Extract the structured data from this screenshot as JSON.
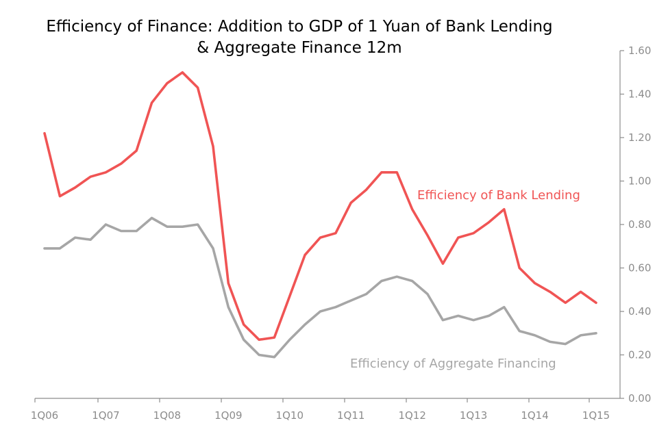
{
  "chart_data": {
    "type": "line",
    "title_line1": "Efficiency of Finance: Addition to GDP of 1 Yuan of Bank Lending",
    "title_line2": "& Aggregate Finance 12m",
    "x_tick_labels": [
      "1Q06",
      "1Q07",
      "1Q08",
      "1Q09",
      "1Q10",
      "1Q11",
      "1Q12",
      "1Q13",
      "1Q14",
      "1Q15"
    ],
    "y_tick_labels": [
      "0.00",
      "0.20",
      "0.40",
      "0.60",
      "0.80",
      "1.00",
      "1.20",
      "1.40",
      "1.60"
    ],
    "ylim": [
      0,
      1.6
    ],
    "x": [
      "1Q06",
      "2Q06",
      "3Q06",
      "4Q06",
      "1Q07",
      "2Q07",
      "3Q07",
      "4Q07",
      "1Q08",
      "2Q08",
      "3Q08",
      "4Q08",
      "1Q09",
      "2Q09",
      "3Q09",
      "4Q09",
      "1Q10",
      "2Q10",
      "3Q10",
      "4Q10",
      "1Q11",
      "2Q11",
      "3Q11",
      "4Q11",
      "1Q12",
      "2Q12",
      "3Q12",
      "4Q12",
      "1Q13",
      "2Q13",
      "3Q13",
      "4Q13",
      "1Q14",
      "2Q14",
      "3Q14",
      "4Q14",
      "1Q15"
    ],
    "series": [
      {
        "name": "Efficiency of Bank Lending",
        "color": "#f05454",
        "values": [
          1.22,
          0.93,
          0.97,
          1.02,
          1.04,
          1.08,
          1.14,
          1.36,
          1.45,
          1.5,
          1.43,
          1.16,
          0.53,
          0.34,
          0.27,
          0.28,
          0.47,
          0.66,
          0.74,
          0.76,
          0.9,
          0.96,
          1.04,
          1.04,
          0.87,
          0.75,
          0.62,
          0.74,
          0.76,
          0.81,
          0.87,
          0.6,
          0.53,
          0.49,
          0.44,
          0.49,
          0.44
        ]
      },
      {
        "name": "Efficiency of Aggregate Financing",
        "color": "#a6a6a6",
        "values": [
          0.69,
          0.69,
          0.74,
          0.73,
          0.8,
          0.77,
          0.77,
          0.83,
          0.79,
          0.79,
          0.8,
          0.69,
          0.42,
          0.27,
          0.2,
          0.19,
          0.27,
          0.34,
          0.4,
          0.42,
          0.45,
          0.48,
          0.54,
          0.56,
          0.54,
          0.48,
          0.36,
          0.38,
          0.36,
          0.38,
          0.42,
          0.31,
          0.29,
          0.26,
          0.25,
          0.29,
          0.3
        ]
      }
    ],
    "grid": false,
    "legend": "inline"
  }
}
